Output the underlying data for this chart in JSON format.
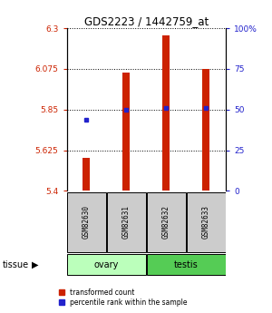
{
  "title": "GDS2223 / 1442759_at",
  "samples": [
    "GSM82630",
    "GSM82631",
    "GSM82632",
    "GSM82633"
  ],
  "bar_values": [
    5.585,
    6.055,
    6.26,
    6.075
  ],
  "bar_bottom": 5.4,
  "percentile_values": [
    44,
    50,
    51,
    51
  ],
  "ylim_left": [
    5.4,
    6.3
  ],
  "ylim_right": [
    0,
    100
  ],
  "yticks_left": [
    5.4,
    5.625,
    5.85,
    6.075,
    6.3
  ],
  "ytick_labels_left": [
    "5.4",
    "5.625",
    "5.85",
    "6.075",
    "6.3"
  ],
  "yticks_right": [
    0,
    25,
    50,
    75,
    100
  ],
  "ytick_labels_right": [
    "0",
    "25",
    "50",
    "75",
    "100%"
  ],
  "bar_color": "#cc2200",
  "percentile_color": "#2222cc",
  "bar_width": 0.18,
  "ovary_color": "#bbffbb",
  "testis_color": "#55cc55",
  "sample_box_color": "#cccccc",
  "tissue_label": "tissue",
  "legend_bar_label": "transformed count",
  "legend_pct_label": "percentile rank within the sample"
}
